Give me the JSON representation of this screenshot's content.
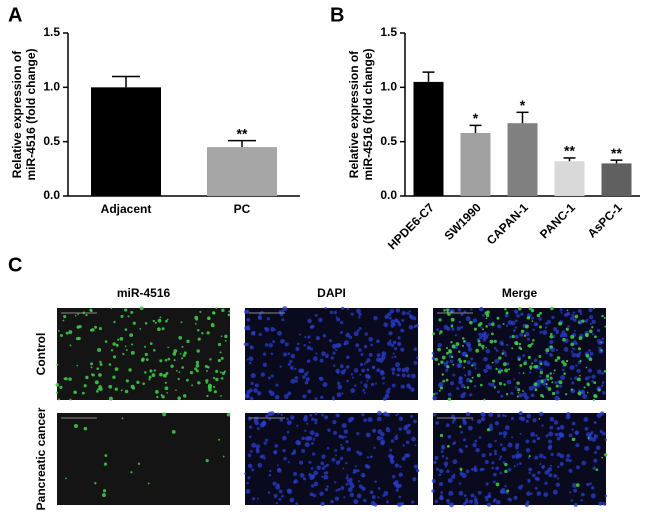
{
  "chart_data": [
    {
      "type": "bar",
      "panel": "A",
      "ylabel": [
        "Relative expression of",
        "miR-4516 (fold change)"
      ],
      "categories": [
        "Adjacent",
        "PC"
      ],
      "values": [
        1.0,
        0.45
      ],
      "errors": [
        0.1,
        0.06
      ],
      "colors": [
        "#000000",
        "#a6a6a6"
      ],
      "annotations": [
        null,
        "**"
      ],
      "ylim": [
        0,
        1.5
      ],
      "yticks": [
        {
          "value": 0,
          "label": "0.0"
        },
        {
          "value": 0.5,
          "label": "0.5"
        },
        {
          "value": 1,
          "label": "1.0"
        },
        1.5
      ]
    },
    {
      "type": "bar",
      "panel": "B",
      "ylabel": [
        "Relative expression of",
        "miR-4516 (fold change)"
      ],
      "categories": [
        "HPDE6-C7",
        "SW1990",
        "CAPAN-1",
        "PANC-1",
        "AsPC-1"
      ],
      "values": [
        1.05,
        0.58,
        0.67,
        0.32,
        0.3
      ],
      "errors": [
        0.09,
        0.07,
        0.1,
        0.03,
        0.03
      ],
      "colors": [
        "#000000",
        "#a0a0a0",
        "#808080",
        "#d9d9d9",
        "#606060"
      ],
      "annotations": [
        null,
        "*",
        "*",
        "**",
        "**"
      ],
      "ylim": [
        0,
        1.5
      ],
      "yticks": [
        {
          "value": 0,
          "label": "0.0"
        },
        {
          "value": 0.5,
          "label": "0.5"
        },
        {
          "value": 1,
          "label": "1.0"
        },
        1.5
      ]
    }
  ],
  "panel_c": {
    "label": "C",
    "columns": [
      "miR-4516",
      "DAPI",
      "Merge"
    ],
    "rows": [
      "Control",
      "Pancreatic cancer"
    ]
  }
}
